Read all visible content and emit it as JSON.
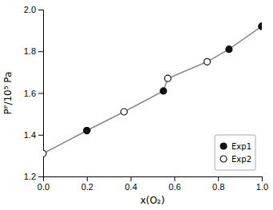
{
  "chart_data": {
    "type": "scatter",
    "xlabel": "x(O₂)",
    "ylabel": "Pᴾ/10⁵ Pa",
    "xlim": [
      0.0,
      1.0
    ],
    "ylim": [
      1.2,
      2.0
    ],
    "xticks": [
      {
        "value": 0.0,
        "label": "0.0"
      },
      0.2,
      0.4,
      0.6,
      0.8,
      {
        "value": 1.0,
        "label": "1.0"
      }
    ],
    "yticks": [
      1.2,
      1.4,
      1.6,
      1.8,
      {
        "value": 2.0,
        "label": "2.0"
      }
    ],
    "grid": false,
    "legend": "lower right",
    "series": [
      {
        "type": "line",
        "color": "#888888",
        "line_style": "solid",
        "x": [
          0.0,
          0.2,
          0.37,
          0.55,
          0.57,
          0.75,
          0.85,
          1.0
        ],
        "values": [
          1.31,
          1.42,
          1.51,
          1.61,
          1.67,
          1.75,
          1.81,
          1.92
        ]
      },
      {
        "name": "Exp1",
        "type": "scatter",
        "marker": "filled-circle",
        "color": "#111111",
        "x": [
          0.2,
          0.55,
          0.85,
          1.0
        ],
        "values": [
          1.42,
          1.61,
          1.81,
          1.92
        ]
      },
      {
        "name": "Exp2",
        "type": "scatter",
        "marker": "open-circle",
        "color": "#111111",
        "x": [
          0.0,
          0.2,
          0.37,
          0.57,
          0.75,
          1.0
        ],
        "values": [
          1.31,
          1.42,
          1.51,
          1.67,
          1.75,
          1.92
        ]
      }
    ]
  }
}
